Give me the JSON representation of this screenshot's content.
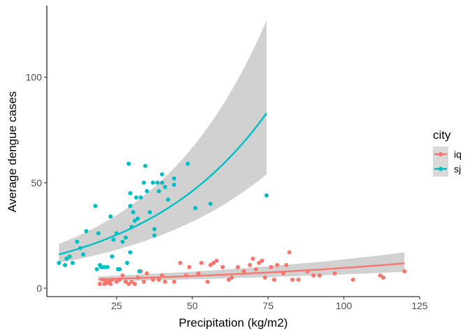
{
  "chart_data": {
    "type": "scatter",
    "title": "",
    "xlabel": "Precipitation (kg/m2)",
    "ylabel": "Average dengue cases",
    "xlim": [
      2,
      125
    ],
    "ylim": [
      -4,
      134
    ],
    "xticks": [
      25,
      50,
      75,
      100,
      125
    ],
    "yticks": [
      0,
      50,
      100
    ],
    "grid": false,
    "legend": {
      "title": "city",
      "position": "right"
    },
    "series": [
      {
        "name": "iq",
        "color": "#F8766D",
        "points": [
          [
            19.5,
            2
          ],
          [
            20.5,
            4
          ],
          [
            21,
            2
          ],
          [
            21.5,
            3
          ],
          [
            22,
            2.5
          ],
          [
            22.5,
            3
          ],
          [
            23,
            2
          ],
          [
            23.5,
            4
          ],
          [
            25,
            3
          ],
          [
            26,
            4
          ],
          [
            27,
            6
          ],
          [
            28,
            3
          ],
          [
            29,
            2
          ],
          [
            30,
            3
          ],
          [
            31,
            2
          ],
          [
            32,
            5
          ],
          [
            33,
            8
          ],
          [
            34,
            3
          ],
          [
            35,
            7
          ],
          [
            37,
            4
          ],
          [
            39,
            4
          ],
          [
            40,
            6
          ],
          [
            41,
            3
          ],
          [
            44,
            3
          ],
          [
            46,
            12
          ],
          [
            48,
            6
          ],
          [
            49,
            10
          ],
          [
            52,
            7
          ],
          [
            53,
            12
          ],
          [
            55,
            3
          ],
          [
            56,
            11
          ],
          [
            57,
            12
          ],
          [
            58,
            13
          ],
          [
            60,
            10
          ],
          [
            62,
            4
          ],
          [
            63,
            5
          ],
          [
            65,
            10
          ],
          [
            67,
            8
          ],
          [
            69,
            11
          ],
          [
            70,
            14
          ],
          [
            71,
            9
          ],
          [
            72,
            12
          ],
          [
            73,
            13
          ],
          [
            74,
            5
          ],
          [
            76,
            10
          ],
          [
            77,
            4
          ],
          [
            78,
            11
          ],
          [
            80,
            7
          ],
          [
            81,
            11
          ],
          [
            82,
            17
          ],
          [
            83,
            4
          ],
          [
            85,
            4
          ],
          [
            88,
            8
          ],
          [
            90,
            6
          ],
          [
            92,
            6
          ],
          [
            97,
            7
          ],
          [
            103,
            4
          ],
          [
            112,
            6
          ],
          [
            113,
            5
          ],
          [
            120,
            8
          ]
        ],
        "trend": {
          "type": "exp",
          "x_range": [
            19,
            120
          ],
          "fit_start": 4.2,
          "fit_end": 11.8,
          "band_start": [
            3.2,
            5.6
          ],
          "band_end": [
            7.8,
            17
          ]
        }
      },
      {
        "name": "sj",
        "color": "#00BFC4",
        "points": [
          [
            6,
            12
          ],
          [
            8,
            11
          ],
          [
            8.5,
            14
          ],
          [
            9.5,
            15
          ],
          [
            10.5,
            12
          ],
          [
            12,
            22
          ],
          [
            13,
            19
          ],
          [
            14,
            16
          ],
          [
            15,
            27
          ],
          [
            18,
            39
          ],
          [
            18.5,
            9
          ],
          [
            19,
            26
          ],
          [
            19.5,
            11
          ],
          [
            20,
            10
          ],
          [
            21,
            10
          ],
          [
            22,
            10
          ],
          [
            23,
            34
          ],
          [
            23.5,
            15
          ],
          [
            24,
            23
          ],
          [
            25,
            26
          ],
          [
            25.5,
            9
          ],
          [
            26,
            9
          ],
          [
            27,
            22
          ],
          [
            28,
            24
          ],
          [
            28.5,
            12
          ],
          [
            29,
            59
          ],
          [
            29.5,
            17
          ],
          [
            29.5,
            45
          ],
          [
            29.5,
            39
          ],
          [
            30,
            29
          ],
          [
            30.5,
            36
          ],
          [
            31,
            32
          ],
          [
            31.5,
            43
          ],
          [
            32,
            33
          ],
          [
            32.5,
            8
          ],
          [
            33,
            43
          ],
          [
            34,
            50
          ],
          [
            34.5,
            58
          ],
          [
            35,
            46
          ],
          [
            36,
            36
          ],
          [
            37,
            50
          ],
          [
            37.5,
            25
          ],
          [
            37.5,
            28
          ],
          [
            38.5,
            50
          ],
          [
            39,
            46
          ],
          [
            40,
            54
          ],
          [
            40,
            50
          ],
          [
            41,
            48
          ],
          [
            42,
            42
          ],
          [
            44,
            52
          ],
          [
            44,
            49
          ],
          [
            48.5,
            59
          ],
          [
            51,
            38
          ],
          [
            56,
            40
          ],
          [
            74.5,
            44
          ]
        ],
        "trend": {
          "type": "exp",
          "x_range": [
            6,
            74.5
          ],
          "fit_start": 16,
          "fit_end": 83,
          "band_start": [
            12,
            21
          ],
          "band_end": [
            54,
            127
          ]
        }
      }
    ]
  }
}
